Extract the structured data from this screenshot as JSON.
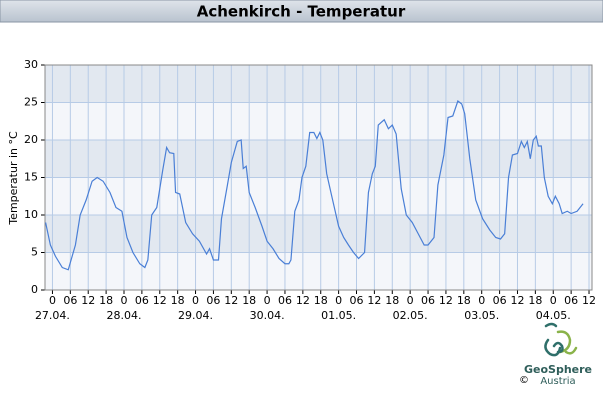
{
  "chart_data": {
    "type": "line",
    "title": "Achenkirch - Temperatur",
    "y_label": "Temperatur in °C",
    "credit": {
      "copyright": "©",
      "brand": "GeoSphere",
      "sub": "Austria"
    },
    "series": [
      {
        "name": "Temperatur",
        "color": "#4a7fd6",
        "x": [
          -2.3,
          -0.7,
          1,
          3.3,
          5.3,
          7.7,
          9.3,
          11.3,
          13.3,
          15,
          17,
          19.3,
          21.3,
          23.3,
          25,
          27,
          29.3,
          31,
          32,
          33.3,
          35,
          37,
          38.3,
          39.3,
          40.7,
          41.3,
          42.7,
          44.7,
          47,
          49.3,
          51.7,
          52.7,
          54,
          55.7,
          56.7,
          58.7,
          60,
          62,
          63.3,
          64,
          65,
          66,
          68,
          70.3,
          72,
          74,
          76,
          78,
          79.3,
          80,
          81.3,
          82.7,
          83.7,
          85,
          86.3,
          87.7,
          88.7,
          89.7,
          90.7,
          92,
          93.7,
          96,
          97.7,
          99.3,
          101,
          102.7,
          104.7,
          106,
          107.3,
          108.3,
          109.3,
          111.3,
          112.7,
          114,
          115.3,
          117,
          118.7,
          120.7,
          122.7,
          124.7,
          126,
          128,
          129.3,
          131.3,
          132.7,
          134.3,
          136,
          137.3,
          138.3,
          140,
          142,
          144.3,
          146.7,
          148.7,
          150.3,
          151.7,
          153,
          154.3,
          156,
          157.3,
          158.3,
          159.3,
          160.3,
          161.3,
          162.3,
          163,
          164,
          165,
          166.3,
          167.7,
          168.7,
          170,
          171,
          172.7,
          174,
          176,
          178
        ],
        "values": [
          9,
          6,
          4.5,
          3,
          2.7,
          6,
          10,
          12,
          14.5,
          15,
          14.5,
          13,
          11,
          10.5,
          7,
          5,
          3.5,
          3,
          4,
          10,
          11,
          16,
          19,
          18.3,
          18.2,
          13,
          12.8,
          9,
          7.5,
          6.5,
          4.8,
          5.5,
          4,
          4,
          9.5,
          14,
          17,
          19.8,
          20,
          16.2,
          16.5,
          13,
          11,
          8.5,
          6.5,
          5.5,
          4.2,
          3.5,
          3.5,
          4,
          10.5,
          12,
          15,
          16.5,
          21,
          21,
          20.2,
          21,
          20,
          15.5,
          12.5,
          8.5,
          7,
          6,
          5,
          4.2,
          5,
          13,
          15.5,
          16.5,
          22,
          22.7,
          21.5,
          22,
          20.8,
          13.5,
          10,
          9,
          7.5,
          6,
          6,
          7,
          14,
          18,
          23,
          23.2,
          25.2,
          24.8,
          23.5,
          17.5,
          12,
          9.5,
          8,
          7,
          6.8,
          7.5,
          15,
          18,
          18.2,
          19.8,
          19,
          19.8,
          17.5,
          20,
          20.5,
          19.2,
          19.2,
          15,
          12.5,
          11.5,
          12.5,
          11.5,
          10.2,
          10.5,
          10.2,
          10.5,
          11.5
        ]
      }
    ],
    "xlim": [
      -2.5,
      181
    ],
    "xticks": [
      0,
      {
        "value": 6,
        "label": "06"
      },
      12,
      18,
      {
        "value": 24,
        "label": "0"
      },
      {
        "value": 30,
        "label": "06"
      },
      {
        "value": 36,
        "label": "12"
      },
      {
        "value": 42,
        "label": "18"
      },
      {
        "value": 48,
        "label": "0"
      },
      {
        "value": 54,
        "label": "06"
      },
      {
        "value": 60,
        "label": "12"
      },
      {
        "value": 66,
        "label": "18"
      },
      {
        "value": 72,
        "label": "0"
      },
      {
        "value": 78,
        "label": "06"
      },
      {
        "value": 84,
        "label": "12"
      },
      {
        "value": 90,
        "label": "18"
      },
      {
        "value": 96,
        "label": "0"
      },
      {
        "value": 102,
        "label": "06"
      },
      {
        "value": 108,
        "label": "12"
      },
      {
        "value": 114,
        "label": "18"
      },
      {
        "value": 120,
        "label": "0"
      },
      {
        "value": 126,
        "label": "06"
      },
      {
        "value": 132,
        "label": "12"
      },
      {
        "value": 138,
        "label": "18"
      },
      {
        "value": 144,
        "label": "0"
      },
      {
        "value": 150,
        "label": "06"
      },
      {
        "value": 156,
        "label": "12"
      },
      {
        "value": 162,
        "label": "18"
      },
      {
        "value": 168,
        "label": "0"
      },
      {
        "value": 174,
        "label": "06"
      },
      {
        "value": 180,
        "label": "12"
      }
    ],
    "date_labels": [
      {
        "value": 0,
        "label": "27.04."
      },
      {
        "value": 24,
        "label": "28.04."
      },
      {
        "value": 48,
        "label": "29.04."
      },
      {
        "value": 72,
        "label": "30.04."
      },
      {
        "value": 96,
        "label": "01.05."
      },
      {
        "value": 120,
        "label": "02.05."
      },
      {
        "value": 144,
        "label": "03.05."
      },
      {
        "value": 168,
        "label": "04.05."
      }
    ],
    "ylim": [
      0,
      30
    ],
    "yticks": [
      0,
      5,
      10,
      15,
      20,
      25,
      30
    ],
    "grid": true,
    "band_colors": [
      "#f4f6fa",
      "#e2e8f0"
    ]
  }
}
